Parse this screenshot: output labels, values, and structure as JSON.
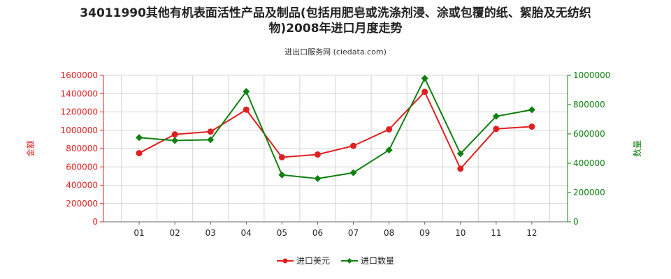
{
  "chart_data": {
    "type": "line",
    "title_line1": "34011990其他有机表面活性产品及制品(包括用肥皂或洗涤剂浸、涂或包覆的纸、絮胎及无纺织",
    "title_line2": "物)2008年进口月度走势",
    "subtitle": "进出口服务网 (ciedata.com)",
    "categories": [
      "01",
      "02",
      "03",
      "04",
      "05",
      "06",
      "07",
      "08",
      "09",
      "10",
      "11",
      "12"
    ],
    "ylabel_left": "金额",
    "ylabel_right": "数量",
    "ylim_left": [
      0,
      1600000
    ],
    "ylim_right": [
      0,
      1000000
    ],
    "yticks_left": [
      "0",
      "200000",
      "400000",
      "600000",
      "800000",
      "1000000",
      "1200000",
      "1400000",
      "1600000"
    ],
    "yticks_right": [
      "0",
      "200000",
      "400000",
      "600000",
      "800000",
      "1000000"
    ],
    "grid": true,
    "legend_position": "bottom-center",
    "series": [
      {
        "name": "进口美元",
        "axis": "left",
        "color": "#e02020",
        "marker": "circle",
        "values": [
          750000,
          955000,
          985000,
          1225000,
          705000,
          735000,
          830000,
          1010000,
          1420000,
          580000,
          1015000,
          1040000
        ]
      },
      {
        "name": "进口数量",
        "axis": "right",
        "color": "#108010",
        "marker": "diamond",
        "values": [
          575000,
          555000,
          560000,
          890000,
          320000,
          295000,
          335000,
          490000,
          980000,
          465000,
          720000,
          765000
        ]
      }
    ]
  }
}
